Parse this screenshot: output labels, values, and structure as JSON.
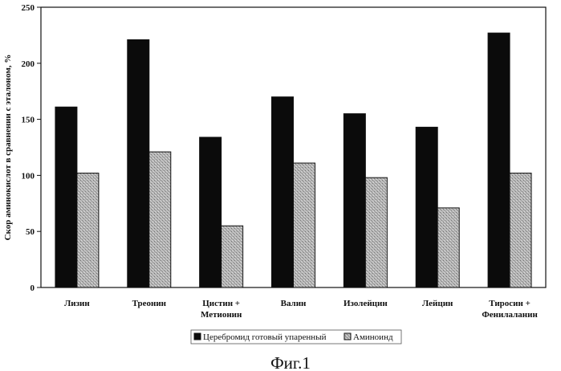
{
  "chart_data": {
    "type": "bar",
    "ylabel": "Скор аминокислот в сравнении с эталоном, %",
    "xlabel": "",
    "ylim": [
      0,
      250
    ],
    "yticks": [
      0,
      50,
      100,
      150,
      200,
      250
    ],
    "grid": false,
    "legend_position": "bottom",
    "categories": [
      [
        "Лизин"
      ],
      [
        "Треонин"
      ],
      [
        "Цистин +",
        "Метионин"
      ],
      [
        "Валин"
      ],
      [
        "Изолейцин"
      ],
      [
        "Лейцин"
      ],
      [
        "Тиросин +",
        "Фенилаланин"
      ]
    ],
    "series": [
      {
        "name": "Церебромид готовый упаренный",
        "color": "#0b0b0b",
        "values": [
          161,
          221,
          134,
          170,
          155,
          143,
          227
        ]
      },
      {
        "name": "Аминоинд",
        "color": "#a6a6a6",
        "values": [
          102,
          121,
          55,
          111,
          98,
          71,
          102
        ]
      }
    ]
  },
  "caption": "Фиг.1"
}
